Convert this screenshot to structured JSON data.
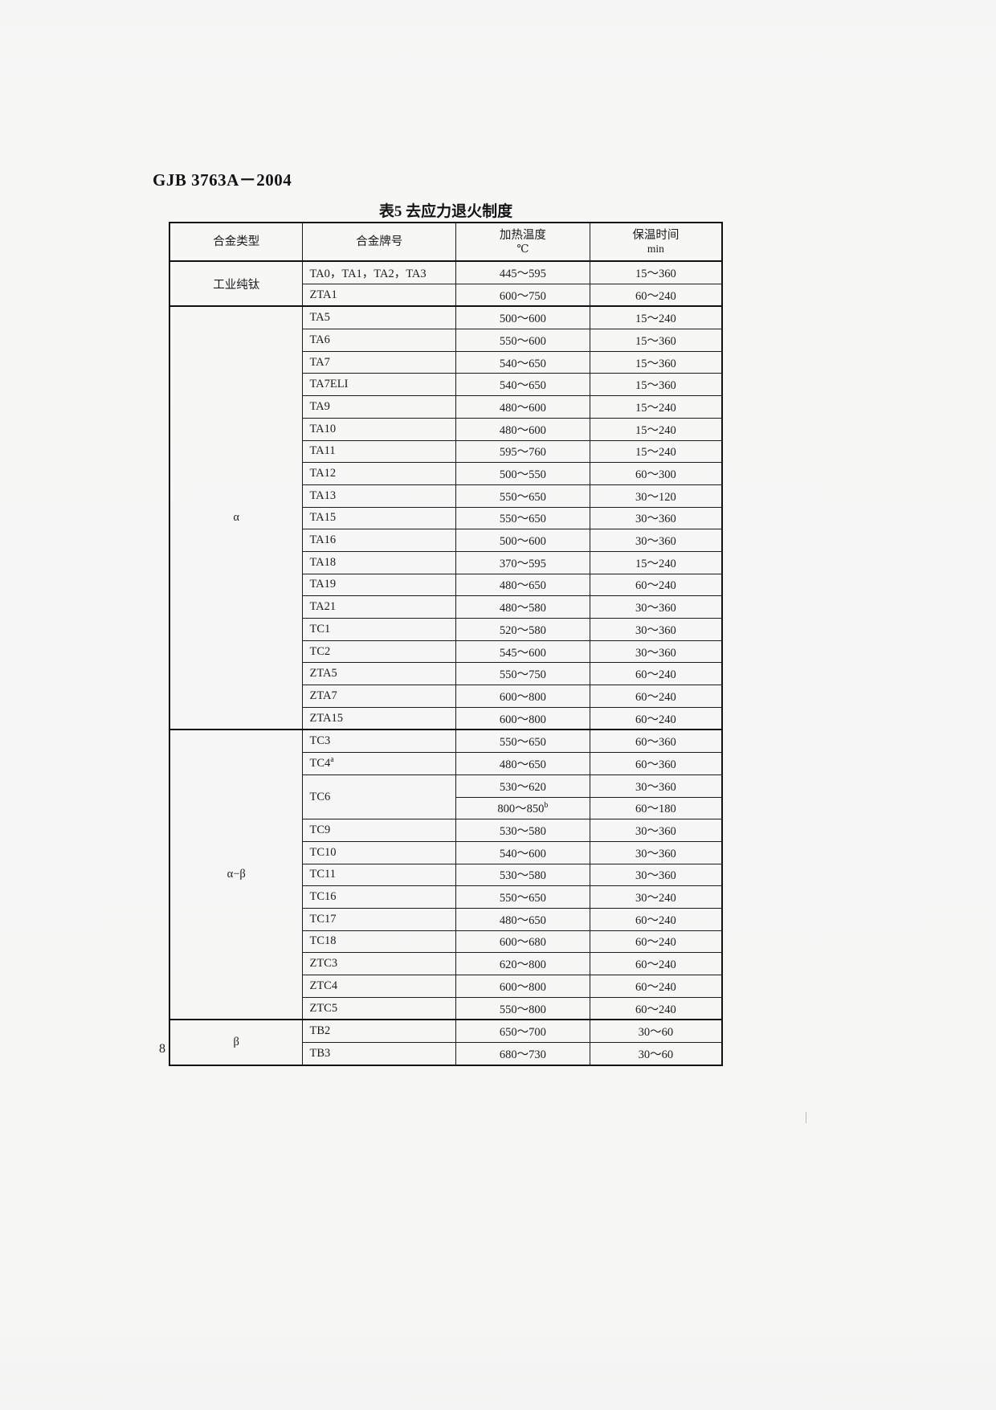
{
  "page": {
    "doc_code": "GJB 3763A－2004",
    "page_number": "8"
  },
  "table": {
    "title": "表5  去应力退火制度",
    "columns": [
      {
        "label": "合金类型",
        "unit": ""
      },
      {
        "label": "合金牌号",
        "unit": ""
      },
      {
        "label": "加热温度",
        "unit": "℃"
      },
      {
        "label": "保温时间",
        "unit": "min"
      }
    ],
    "groups": [
      {
        "type": "工业纯钛",
        "rows": [
          {
            "grade": "TA0，TA1，TA2，TA3",
            "temp": "445～595",
            "time": "15～360"
          },
          {
            "grade": "ZTA1",
            "temp": "600～750",
            "time": "60～240"
          }
        ]
      },
      {
        "type": "α",
        "rows": [
          {
            "grade": "TA5",
            "temp": "500～600",
            "time": "15～240"
          },
          {
            "grade": "TA6",
            "temp": "550～600",
            "time": "15～360"
          },
          {
            "grade": "TA7",
            "temp": "540～650",
            "time": "15～360"
          },
          {
            "grade": "TA7ELI",
            "temp": "540～650",
            "time": "15～360"
          },
          {
            "grade": "TA9",
            "temp": "480～600",
            "time": "15～240"
          },
          {
            "grade": "TA10",
            "temp": "480～600",
            "time": "15～240"
          },
          {
            "grade": "TA11",
            "temp": "595～760",
            "time": "15～240"
          },
          {
            "grade": "TA12",
            "temp": "500～550",
            "time": "60～300"
          },
          {
            "grade": "TA13",
            "temp": "550～650",
            "time": "30～120"
          },
          {
            "grade": "TA15",
            "temp": "550～650",
            "time": "30～360"
          },
          {
            "grade": "TA16",
            "temp": "500～600",
            "time": "30～360"
          },
          {
            "grade": "TA18",
            "temp": "370～595",
            "time": "15～240"
          },
          {
            "grade": "TA19",
            "temp": "480～650",
            "time": "60～240"
          },
          {
            "grade": "TA21",
            "temp": "480～580",
            "time": "30～360"
          },
          {
            "grade": "TC1",
            "temp": "520～580",
            "time": "30～360"
          },
          {
            "grade": "TC2",
            "temp": "545～600",
            "time": "30～360"
          },
          {
            "grade": "ZTA5",
            "temp": "550～750",
            "time": "60～240"
          },
          {
            "grade": "ZTA7",
            "temp": "600～800",
            "time": "60～240"
          },
          {
            "grade": "ZTA15",
            "temp": "600～800",
            "time": "60～240"
          }
        ]
      },
      {
        "type": "α−β",
        "rows": [
          {
            "grade": "TC3",
            "temp": "550～650",
            "time": "60～360"
          },
          {
            "grade": "TC4",
            "grade_sup": "a",
            "temp": "480～650",
            "time": "60～360"
          },
          {
            "grade": "TC6",
            "grade_rowspan": 2,
            "temp": "530～620",
            "time": "30～360"
          },
          {
            "grade": null,
            "temp": "800～850",
            "temp_sup": "b",
            "time": "60～180"
          },
          {
            "grade": "TC9",
            "temp": "530～580",
            "time": "30～360"
          },
          {
            "grade": "TC10",
            "temp": "540～600",
            "time": "30～360"
          },
          {
            "grade": "TC11",
            "temp": "530～580",
            "time": "30～360"
          },
          {
            "grade": "TC16",
            "temp": "550～650",
            "time": "30～240"
          },
          {
            "grade": "TC17",
            "temp": "480～650",
            "time": "60～240"
          },
          {
            "grade": "TC18",
            "temp": "600～680",
            "time": "60～240"
          },
          {
            "grade": "ZTC3",
            "temp": "620～800",
            "time": "60～240"
          },
          {
            "grade": "ZTC4",
            "temp": "600～800",
            "time": "60～240"
          },
          {
            "grade": "ZTC5",
            "temp": "550～800",
            "time": "60～240"
          }
        ]
      },
      {
        "type": "β",
        "rows": [
          {
            "grade": "TB2",
            "temp": "650～700",
            "time": "30～60"
          },
          {
            "grade": "TB3",
            "temp": "680～730",
            "time": "30～60"
          }
        ]
      }
    ]
  }
}
